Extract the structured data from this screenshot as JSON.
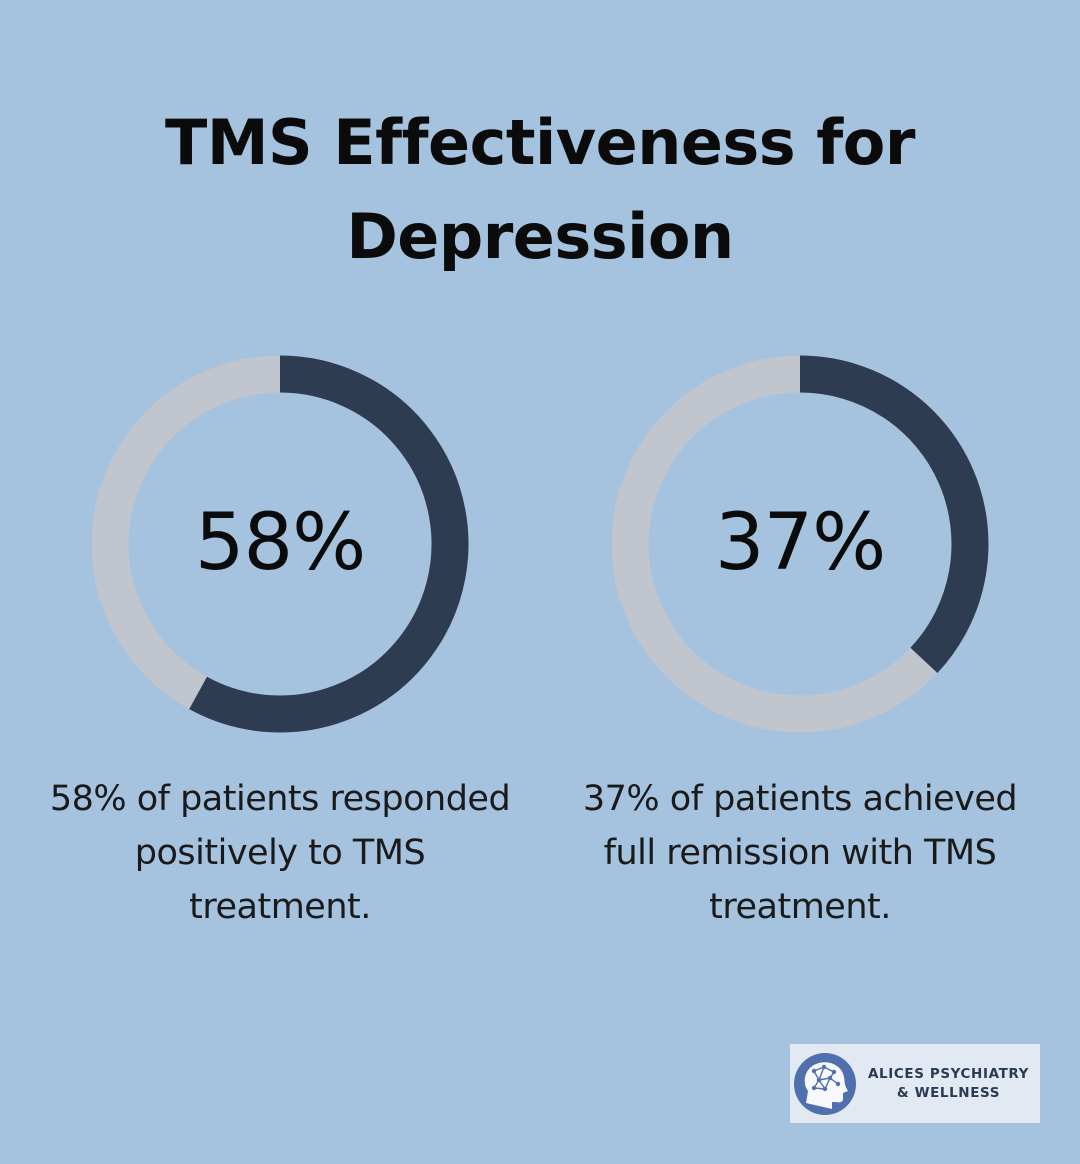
{
  "title": "TMS Effectiveness for Depression",
  "colors": {
    "background": "#a5c3de",
    "ring_track": "#c1c6ce",
    "ring_fill": "#2d3c50",
    "logo_bg": "#e2e9f2",
    "logo_mark": "#4f6fae"
  },
  "chart_data": [
    {
      "type": "pie",
      "variant": "donut",
      "value": 58,
      "max": 100,
      "center_label": "58%",
      "caption": "58% of patients responded positively to TMS treatment."
    },
    {
      "type": "pie",
      "variant": "donut",
      "value": 37,
      "max": 100,
      "center_label": "37%",
      "caption": "37% of patients achieved full remission with TMS treatment."
    }
  ],
  "logo": {
    "line1": "ALICES PSYCHIATRY",
    "line2": "& WELLNESS",
    "icon": "head-network-icon"
  }
}
